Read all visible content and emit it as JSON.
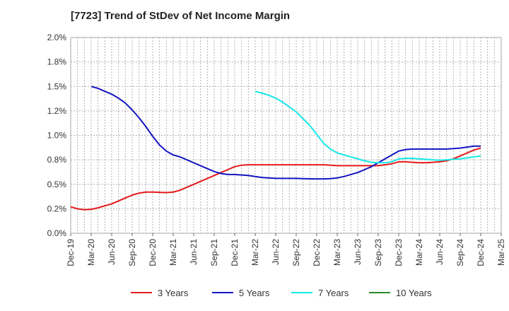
{
  "chart_data": {
    "type": "line",
    "title": "[7723]  Trend of StDev of Net Income Margin",
    "xlabel": "",
    "ylabel": "",
    "x_ticks": [
      "Dec-19",
      "Mar-20",
      "Jun-20",
      "Sep-20",
      "Dec-20",
      "Mar-21",
      "Jun-21",
      "Sep-21",
      "Dec-21",
      "Mar-22",
      "Jun-22",
      "Sep-22",
      "Dec-22",
      "Mar-23",
      "Jun-23",
      "Sep-23",
      "Dec-23",
      "Mar-24",
      "Jun-24",
      "Sep-24",
      "Dec-24",
      "Mar-25"
    ],
    "y_ticks": [
      "0.0%",
      "0.2%",
      "0.5%",
      "0.8%",
      "1.0%",
      "1.2%",
      "1.5%",
      "1.8%",
      "2.0%"
    ],
    "ylim": [
      0,
      2.0
    ],
    "grid": true,
    "legend_position": "bottom",
    "series": [
      {
        "name": "3 Years",
        "color": "#e41a1c",
        "points": [
          [
            "Dec-19",
            0.27
          ],
          [
            "Jan-20",
            0.25
          ],
          [
            "Feb-20",
            0.24
          ],
          [
            "Mar-20",
            0.245
          ],
          [
            "Apr-20",
            0.26
          ],
          [
            "May-20",
            0.28
          ],
          [
            "Jun-20",
            0.3
          ],
          [
            "Jul-20",
            0.33
          ],
          [
            "Aug-20",
            0.36
          ],
          [
            "Sep-20",
            0.39
          ],
          [
            "Oct-20",
            0.41
          ],
          [
            "Nov-20",
            0.42
          ],
          [
            "Dec-20",
            0.42
          ],
          [
            "Jan-21",
            0.418
          ],
          [
            "Feb-21",
            0.415
          ],
          [
            "Mar-21",
            0.42
          ],
          [
            "Apr-21",
            0.44
          ],
          [
            "May-21",
            0.47
          ],
          [
            "Jun-21",
            0.5
          ],
          [
            "Jul-21",
            0.53
          ],
          [
            "Aug-21",
            0.56
          ],
          [
            "Sep-21",
            0.59
          ],
          [
            "Oct-21",
            0.62
          ],
          [
            "Nov-21",
            0.65
          ],
          [
            "Dec-21",
            0.68
          ],
          [
            "Jan-22",
            0.695
          ],
          [
            "Feb-22",
            0.7
          ],
          [
            "Mar-22",
            0.7
          ],
          [
            "Apr-22",
            0.7
          ],
          [
            "May-22",
            0.7
          ],
          [
            "Jun-22",
            0.7
          ],
          [
            "Jul-22",
            0.7
          ],
          [
            "Aug-22",
            0.7
          ],
          [
            "Sep-22",
            0.7
          ],
          [
            "Oct-22",
            0.7
          ],
          [
            "Nov-22",
            0.7
          ],
          [
            "Dec-22",
            0.7
          ],
          [
            "Jan-23",
            0.7
          ],
          [
            "Feb-23",
            0.695
          ],
          [
            "Mar-23",
            0.69
          ],
          [
            "Apr-23",
            0.69
          ],
          [
            "May-23",
            0.69
          ],
          [
            "Jun-23",
            0.69
          ],
          [
            "Jul-23",
            0.69
          ],
          [
            "Aug-23",
            0.69
          ],
          [
            "Sep-23",
            0.69
          ],
          [
            "Oct-23",
            0.7
          ],
          [
            "Nov-23",
            0.71
          ],
          [
            "Dec-23",
            0.73
          ],
          [
            "Jan-24",
            0.73
          ],
          [
            "Feb-24",
            0.725
          ],
          [
            "Mar-24",
            0.72
          ],
          [
            "Apr-24",
            0.72
          ],
          [
            "May-24",
            0.725
          ],
          [
            "Jun-24",
            0.73
          ],
          [
            "Jul-24",
            0.74
          ],
          [
            "Aug-24",
            0.76
          ],
          [
            "Sep-24",
            0.79
          ],
          [
            "Oct-24",
            0.82
          ],
          [
            "Nov-24",
            0.85
          ],
          [
            "Dec-24",
            0.87
          ]
        ]
      },
      {
        "name": "5 Years",
        "color": "#1515c0",
        "points": [
          [
            "Mar-20",
            1.5
          ],
          [
            "Apr-20",
            1.48
          ],
          [
            "May-20",
            1.45
          ],
          [
            "Jun-20",
            1.42
          ],
          [
            "Jul-20",
            1.38
          ],
          [
            "Aug-20",
            1.33
          ],
          [
            "Sep-20",
            1.26
          ],
          [
            "Oct-20",
            1.18
          ],
          [
            "Nov-20",
            1.09
          ],
          [
            "Dec-20",
            0.99
          ],
          [
            "Jan-21",
            0.9
          ],
          [
            "Feb-21",
            0.84
          ],
          [
            "Mar-21",
            0.8
          ],
          [
            "Apr-21",
            0.78
          ],
          [
            "May-21",
            0.75
          ],
          [
            "Jun-21",
            0.72
          ],
          [
            "Jul-21",
            0.69
          ],
          [
            "Aug-21",
            0.66
          ],
          [
            "Sep-21",
            0.63
          ],
          [
            "Oct-21",
            0.61
          ],
          [
            "Nov-21",
            0.6
          ],
          [
            "Dec-21",
            0.6
          ],
          [
            "Jan-22",
            0.595
          ],
          [
            "Feb-22",
            0.59
          ],
          [
            "Mar-22",
            0.58
          ],
          [
            "Apr-22",
            0.57
          ],
          [
            "May-22",
            0.565
          ],
          [
            "Jun-22",
            0.56
          ],
          [
            "Jul-22",
            0.56
          ],
          [
            "Aug-22",
            0.56
          ],
          [
            "Sep-22",
            0.56
          ],
          [
            "Oct-22",
            0.558
          ],
          [
            "Nov-22",
            0.556
          ],
          [
            "Dec-22",
            0.555
          ],
          [
            "Jan-23",
            0.555
          ],
          [
            "Feb-23",
            0.558
          ],
          [
            "Mar-23",
            0.565
          ],
          [
            "Apr-23",
            0.58
          ],
          [
            "May-23",
            0.6
          ],
          [
            "Jun-23",
            0.62
          ],
          [
            "Jul-23",
            0.65
          ],
          [
            "Aug-23",
            0.68
          ],
          [
            "Sep-23",
            0.72
          ],
          [
            "Oct-23",
            0.76
          ],
          [
            "Nov-23",
            0.8
          ],
          [
            "Dec-23",
            0.84
          ],
          [
            "Jan-24",
            0.855
          ],
          [
            "Feb-24",
            0.86
          ],
          [
            "Mar-24",
            0.86
          ],
          [
            "Apr-24",
            0.86
          ],
          [
            "May-24",
            0.86
          ],
          [
            "Jun-24",
            0.86
          ],
          [
            "Jul-24",
            0.86
          ],
          [
            "Aug-24",
            0.865
          ],
          [
            "Sep-24",
            0.87
          ],
          [
            "Oct-24",
            0.88
          ],
          [
            "Nov-24",
            0.89
          ],
          [
            "Dec-24",
            0.89
          ]
        ]
      },
      {
        "name": "7 Years",
        "color": "#17e8e8",
        "points": [
          [
            "Mar-22",
            1.45
          ],
          [
            "Apr-22",
            1.43
          ],
          [
            "May-22",
            1.41
          ],
          [
            "Jun-22",
            1.38
          ],
          [
            "Jul-22",
            1.34
          ],
          [
            "Aug-22",
            1.29
          ],
          [
            "Sep-22",
            1.24
          ],
          [
            "Oct-22",
            1.17
          ],
          [
            "Nov-22",
            1.1
          ],
          [
            "Dec-22",
            1.01
          ],
          [
            "Jan-23",
            0.92
          ],
          [
            "Feb-23",
            0.86
          ],
          [
            "Mar-23",
            0.82
          ],
          [
            "Apr-23",
            0.8
          ],
          [
            "May-23",
            0.78
          ],
          [
            "Jun-23",
            0.76
          ],
          [
            "Jul-23",
            0.74
          ],
          [
            "Aug-23",
            0.725
          ],
          [
            "Sep-23",
            0.72
          ],
          [
            "Oct-23",
            0.72
          ],
          [
            "Nov-23",
            0.73
          ],
          [
            "Dec-23",
            0.76
          ],
          [
            "Jan-24",
            0.765
          ],
          [
            "Feb-24",
            0.765
          ],
          [
            "Mar-24",
            0.76
          ],
          [
            "Apr-24",
            0.755
          ],
          [
            "May-24",
            0.75
          ],
          [
            "Jun-24",
            0.745
          ],
          [
            "Jul-24",
            0.75
          ],
          [
            "Aug-24",
            0.755
          ],
          [
            "Sep-24",
            0.76
          ],
          [
            "Oct-24",
            0.77
          ],
          [
            "Nov-24",
            0.78
          ],
          [
            "Dec-24",
            0.79
          ]
        ]
      },
      {
        "name": "10 Years",
        "color": "#2a8a2a",
        "points": []
      }
    ]
  }
}
